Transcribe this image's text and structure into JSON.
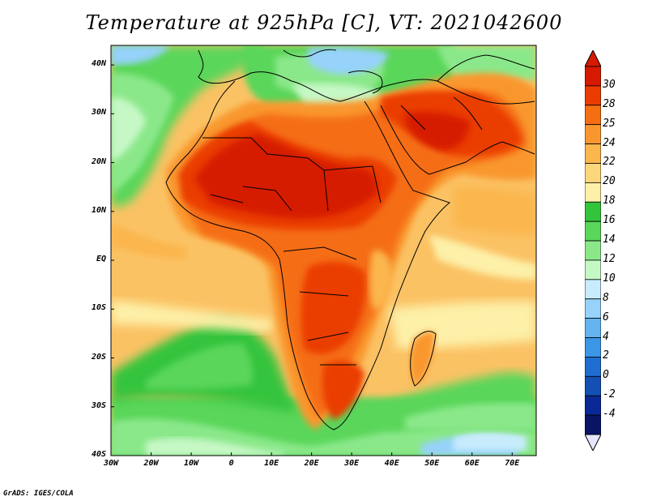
{
  "title": "Temperature at 925hPa [C], VT: 2021042600",
  "credit": "GrADS: IGES/COLA",
  "map": {
    "lon_range": [
      -30,
      76
    ],
    "lat_range": [
      -40,
      44
    ],
    "lat_labels": [
      {
        "value": 40,
        "text": "40N"
      },
      {
        "value": 30,
        "text": "30N"
      },
      {
        "value": 20,
        "text": "20N"
      },
      {
        "value": 10,
        "text": "10N"
      },
      {
        "value": 0,
        "text": "EQ"
      },
      {
        "value": -10,
        "text": "10S"
      },
      {
        "value": -20,
        "text": "20S"
      },
      {
        "value": -30,
        "text": "30S"
      },
      {
        "value": -40,
        "text": "40S"
      }
    ],
    "lon_labels": [
      {
        "value": -30,
        "text": "30W"
      },
      {
        "value": -20,
        "text": "20W"
      },
      {
        "value": -10,
        "text": "10W"
      },
      {
        "value": 0,
        "text": "0"
      },
      {
        "value": 10,
        "text": "10E"
      },
      {
        "value": 20,
        "text": "20E"
      },
      {
        "value": 30,
        "text": "30E"
      },
      {
        "value": 40,
        "text": "40E"
      },
      {
        "value": 50,
        "text": "50E"
      },
      {
        "value": 60,
        "text": "60E"
      },
      {
        "value": 70,
        "text": "70E"
      }
    ]
  },
  "colorbar": {
    "labels": [
      "30",
      "28",
      "25",
      "24",
      "22",
      "20",
      "18",
      "16",
      "14",
      "12",
      "10",
      "8",
      "6",
      "4",
      "2",
      "0",
      "-2",
      "-4"
    ],
    "colors": [
      "#d61a00",
      "#ea3c00",
      "#f56e12",
      "#f9972e",
      "#fbb64e",
      "#fcd67a",
      "#fdf0a8",
      "#34c43c",
      "#5ad65a",
      "#8be88a",
      "#c6f8c6",
      "#c8ecfc",
      "#96d2fa",
      "#64b4f0",
      "#3c96e6",
      "#1e6ed2",
      "#1450b4",
      "#0a2896",
      "#0a1464"
    ],
    "over_color": "#d61a00",
    "under_color": "#e6e6ff"
  }
}
